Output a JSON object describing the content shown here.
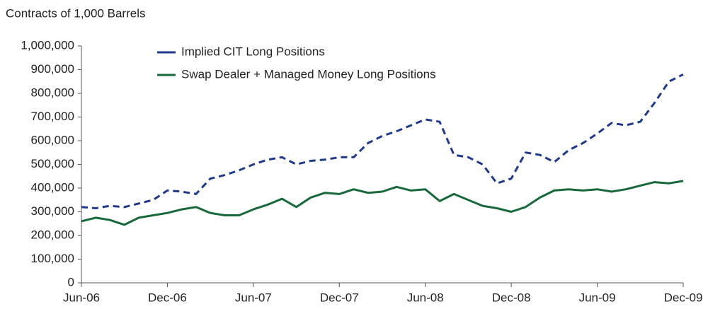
{
  "chart_data": {
    "type": "line",
    "y_axis_label": "Contracts of 1,000 Barrels",
    "categories": [
      "Jun-06",
      null,
      null,
      null,
      null,
      null,
      "Dec-06",
      null,
      null,
      null,
      null,
      null,
      "Jun-07",
      null,
      null,
      null,
      null,
      null,
      "Dec-07",
      null,
      null,
      null,
      null,
      null,
      "Jun-08",
      null,
      null,
      null,
      null,
      null,
      "Dec-08",
      null,
      null,
      null,
      null,
      null,
      "Jun-09",
      null,
      null,
      null,
      null,
      null,
      "Dec-09"
    ],
    "series": [
      {
        "name": "Implied CIT Long Positions",
        "color": "#1f3a8a",
        "style": "dashed",
        "values": [
          320000,
          315000,
          325000,
          320000,
          335000,
          350000,
          390000,
          385000,
          375000,
          440000,
          455000,
          475000,
          500000,
          520000,
          530000,
          500000,
          515000,
          520000,
          530000,
          530000,
          590000,
          620000,
          640000,
          665000,
          690000,
          680000,
          540000,
          530000,
          500000,
          420000,
          440000,
          550000,
          540000,
          510000,
          560000,
          590000,
          630000,
          675000,
          665000,
          680000,
          760000,
          850000,
          880000
        ]
      },
      {
        "name": "Swap Dealer + Managed Money Long Positions",
        "color": "#17693a",
        "style": "solid",
        "values": [
          260000,
          275000,
          265000,
          245000,
          275000,
          285000,
          295000,
          310000,
          320000,
          295000,
          285000,
          285000,
          310000,
          330000,
          355000,
          320000,
          360000,
          380000,
          375000,
          395000,
          380000,
          385000,
          405000,
          390000,
          395000,
          345000,
          375000,
          350000,
          325000,
          315000,
          300000,
          320000,
          360000,
          390000,
          395000,
          390000,
          395000,
          385000,
          395000,
          410000,
          425000,
          420000,
          430000
        ]
      }
    ],
    "ylim": [
      0,
      1000000
    ],
    "yticks": [
      0,
      {
        "value": 100000,
        "label": "100,000"
      },
      {
        "value": 200000,
        "label": "200,000"
      },
      {
        "value": 300000,
        "label": "300,000"
      },
      {
        "value": 400000,
        "label": "400,000"
      },
      {
        "value": 500000,
        "label": "500,000"
      },
      {
        "value": 600000,
        "label": "600,000"
      },
      {
        "value": 700000,
        "label": "700,000"
      },
      {
        "value": 800000,
        "label": "800,000"
      },
      {
        "value": 900000,
        "label": "900,000"
      },
      {
        "value": 1000000,
        "label": "1,000,000"
      }
    ],
    "grid": false
  }
}
